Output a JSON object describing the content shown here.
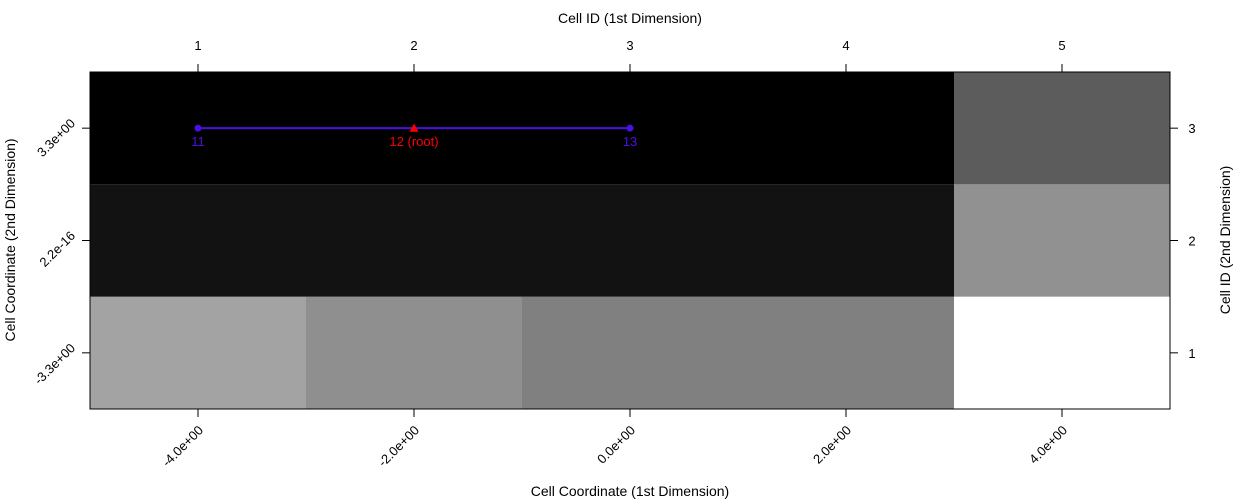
{
  "chart_data": {
    "type": "heatmap",
    "title": "",
    "xlabel_bottom": "Cell Coordinate (1st Dimension)",
    "xlabel_top": "Cell ID (1st Dimension)",
    "ylabel_left": "Cell Coordinate (2nd Dimension)",
    "ylabel_right": "Cell ID (2nd Dimension)",
    "x_coord_ticks": [
      "-4.0e+00",
      "-2.0e+00",
      "0.0e+00",
      "2.0e+00",
      "4.0e+00"
    ],
    "x_id_ticks": [
      "1",
      "2",
      "3",
      "4",
      "5"
    ],
    "y_coord_ticks": [
      "-3.3e+00",
      "2.2e-16",
      "3.3e+00"
    ],
    "y_id_ticks": [
      "1",
      "2",
      "3"
    ],
    "cell_columns": [
      {
        "x0": 0.5,
        "x1": 1.5
      },
      {
        "x0": 1.5,
        "x1": 2.5
      },
      {
        "x0": 2.5,
        "x1": 4.5
      },
      {
        "x0": 4.5,
        "x1": 5.5
      }
    ],
    "gray_levels": [
      [
        0.64,
        0.56,
        0.5,
        1.0
      ],
      [
        0.07,
        0.07,
        0.07,
        0.57
      ],
      [
        0.0,
        0.0,
        0.0,
        0.36
      ]
    ],
    "edges": [
      {
        "from": 0,
        "to": 1
      },
      {
        "from": 1,
        "to": 2
      }
    ],
    "nodes": [
      {
        "label": "11",
        "x": 1,
        "y": 3,
        "marker": "circle",
        "color": "#4B0FE5"
      },
      {
        "label": "12 (root)",
        "x": 2,
        "y": 3,
        "marker": "triangle",
        "color": "#FF0000"
      },
      {
        "label": "13",
        "x": 3,
        "x_alt": 3,
        "y": 3,
        "marker": "circle",
        "color": "#4B0FE5"
      }
    ],
    "xlim": [
      0.5,
      5.5
    ],
    "ylim": [
      0.5,
      3.5
    ],
    "edge_color": "#4B0FE5"
  }
}
